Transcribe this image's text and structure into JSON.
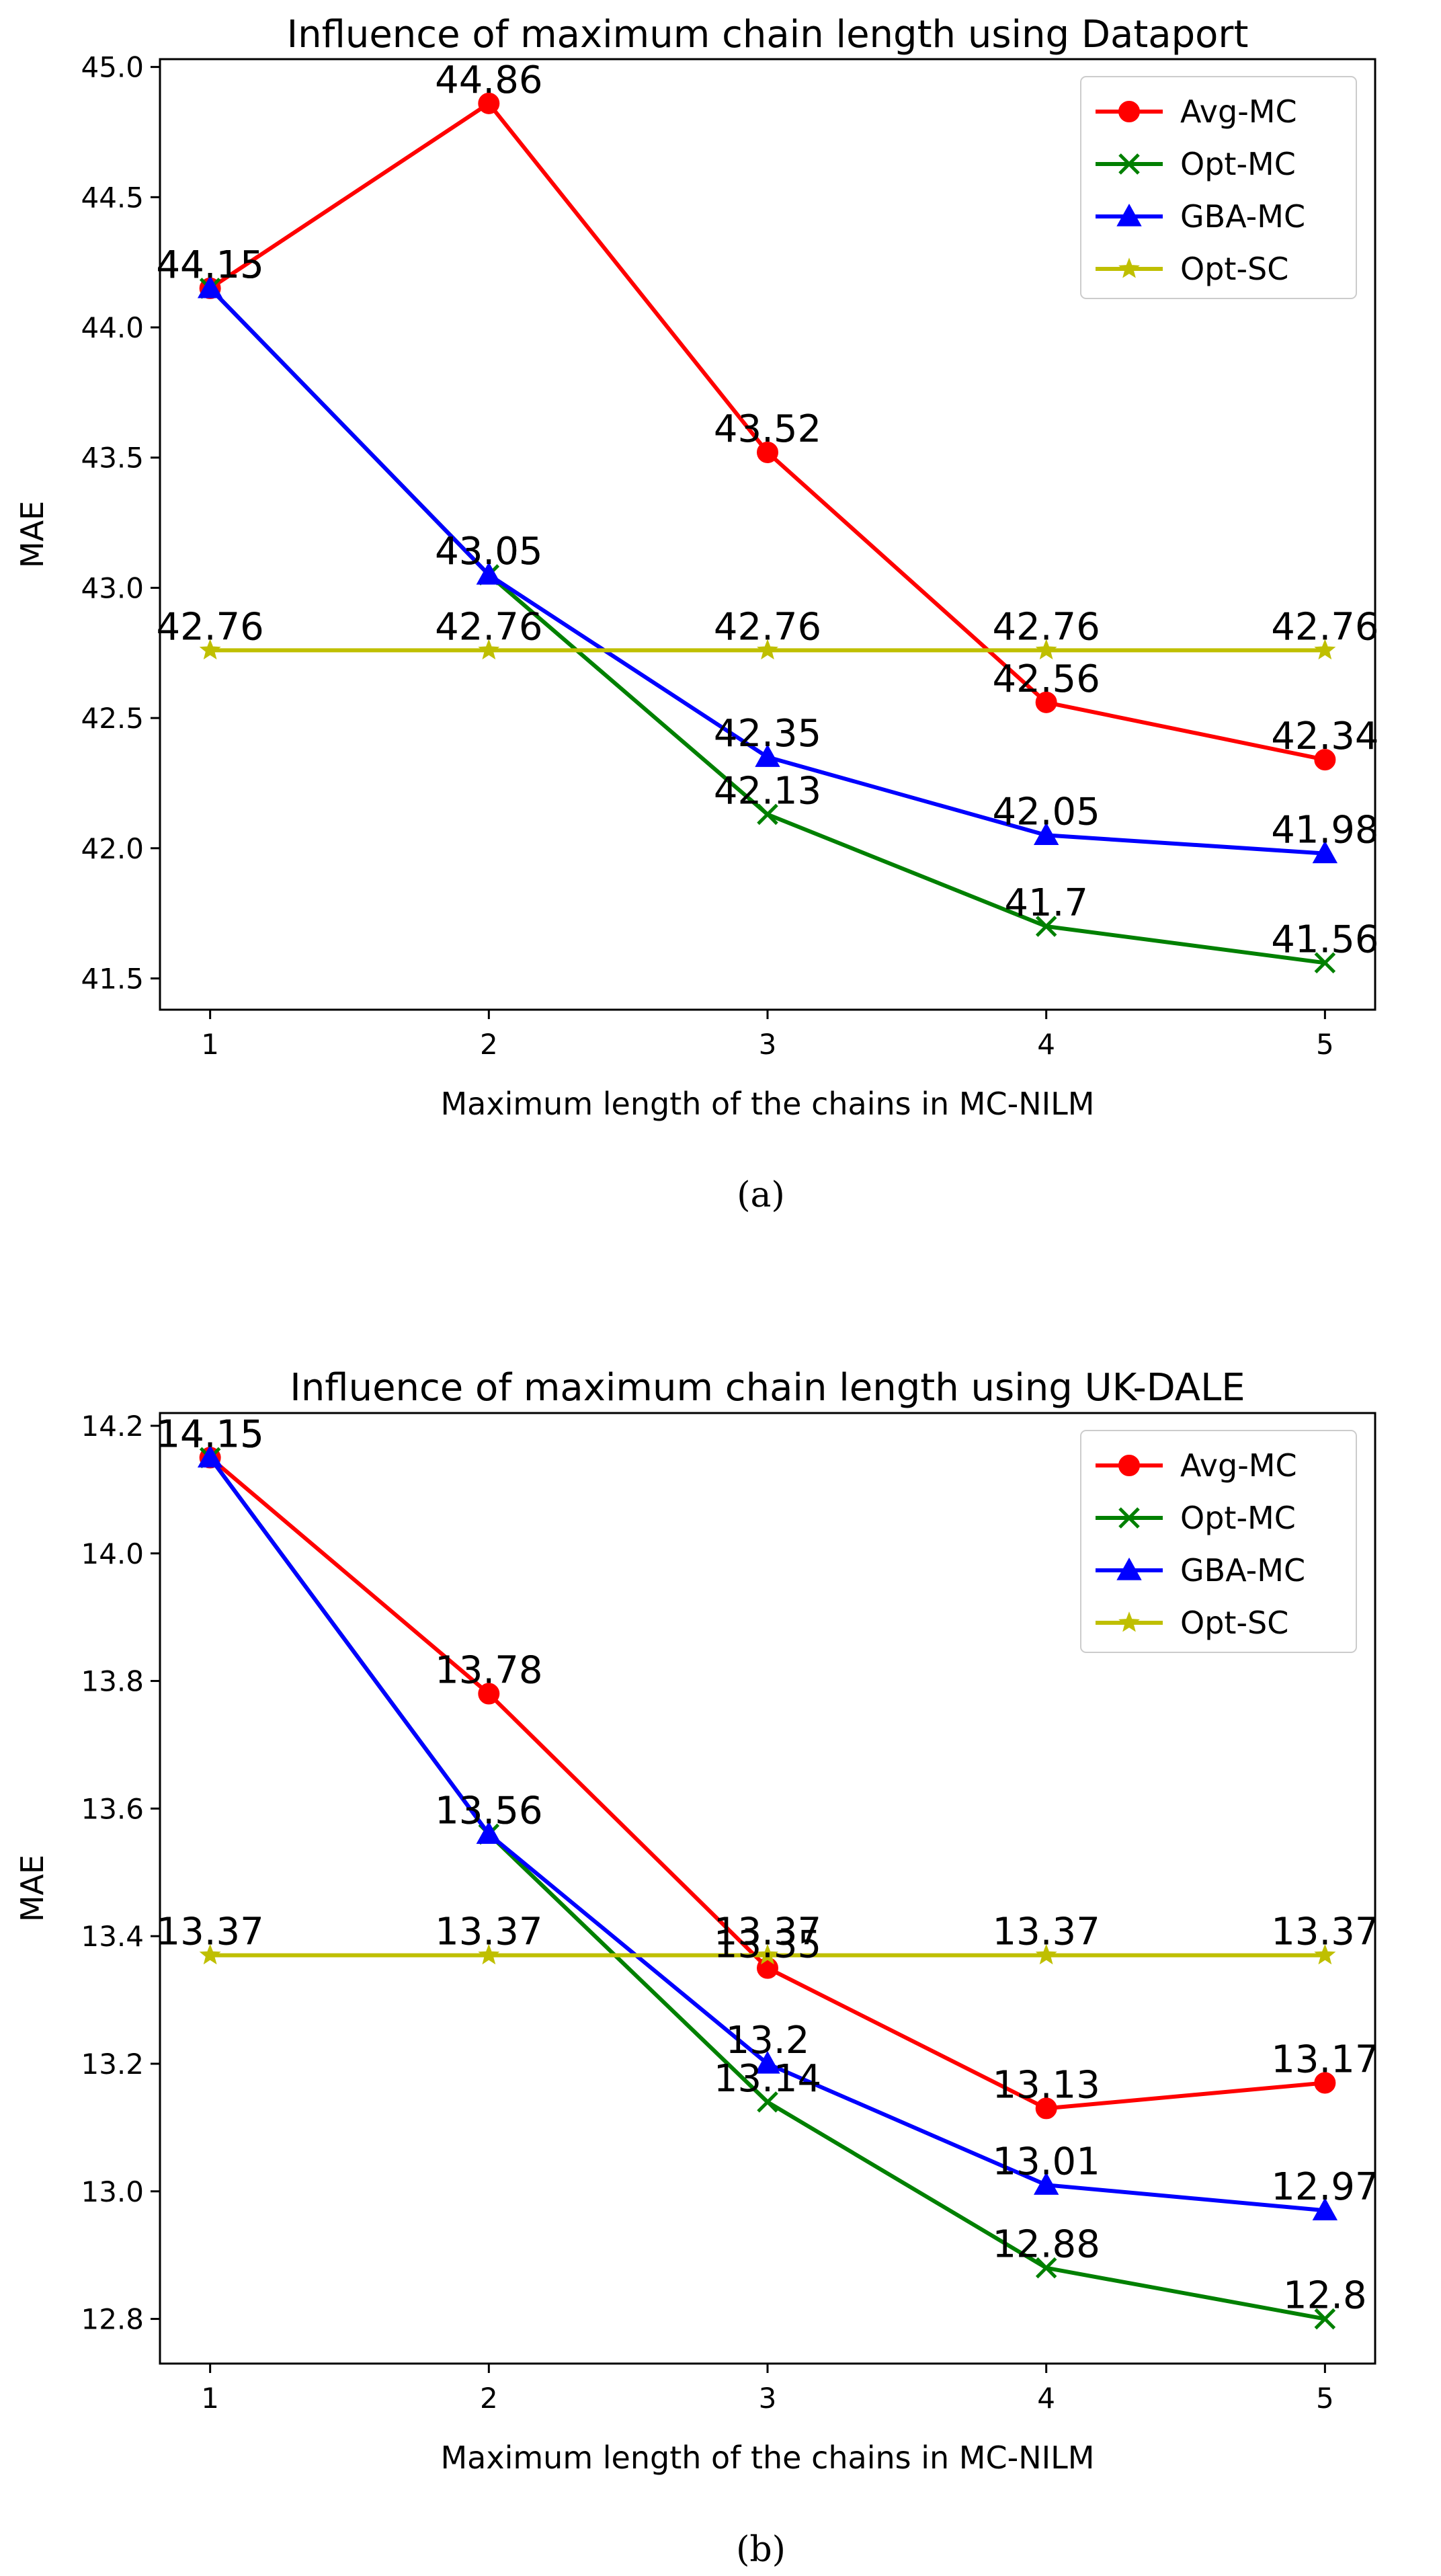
{
  "chart_data": [
    {
      "type": "line",
      "title": "Influence of maximum chain length using Dataport",
      "xlabel": "Maximum length of the chains in MC-NILM",
      "ylabel": "MAE",
      "caption": "(a)",
      "x": [
        1,
        2,
        3,
        4,
        5
      ],
      "xticks": [
        "1",
        "2",
        "3",
        "4",
        "5"
      ],
      "xlim": [
        0.82,
        5.18
      ],
      "ylim": [
        41.38,
        45.03
      ],
      "yticks": [
        "41.5",
        "42.0",
        "42.5",
        "43.0",
        "43.5",
        "44.0",
        "44.5",
        "45.0"
      ],
      "ytick_values": [
        41.5,
        42.0,
        42.5,
        43.0,
        43.5,
        44.0,
        44.5,
        45.0
      ],
      "legend_position": "top-right",
      "series": [
        {
          "name": "Avg-MC",
          "color": "#ff0000",
          "marker": "circle",
          "values": [
            44.15,
            44.86,
            43.52,
            42.56,
            42.34
          ],
          "labels": [
            "44.15",
            "44.86",
            "43.52",
            "42.56",
            "42.34"
          ]
        },
        {
          "name": "Opt-MC",
          "color": "#008000",
          "marker": "x",
          "values": [
            44.15,
            43.05,
            42.13,
            41.7,
            41.56
          ],
          "labels": [
            "44.15",
            "43.05",
            "42.13",
            "41.7",
            "41.56"
          ]
        },
        {
          "name": "GBA-MC",
          "color": "#0000ff",
          "marker": "triangle",
          "values": [
            44.15,
            43.05,
            42.35,
            42.05,
            41.98
          ],
          "labels": [
            "44.15",
            "43.05",
            "42.35",
            "42.05",
            "41.98"
          ]
        },
        {
          "name": "Opt-SC",
          "color": "#bfbf00",
          "marker": "star",
          "values": [
            42.76,
            42.76,
            42.76,
            42.76,
            42.76
          ],
          "labels": [
            "42.76",
            "42.76",
            "42.76",
            "42.76",
            "42.76"
          ]
        }
      ]
    },
    {
      "type": "line",
      "title": "Influence of maximum chain length using UK-DALE",
      "xlabel": "Maximum length of the chains in MC-NILM",
      "ylabel": "MAE",
      "caption": "(b)",
      "x": [
        1,
        2,
        3,
        4,
        5
      ],
      "xticks": [
        "1",
        "2",
        "3",
        "4",
        "5"
      ],
      "xlim": [
        0.82,
        5.18
      ],
      "ylim": [
        12.73,
        14.22
      ],
      "yticks": [
        "12.8",
        "13.0",
        "13.2",
        "13.4",
        "13.6",
        "13.8",
        "14.0",
        "14.2"
      ],
      "ytick_values": [
        12.8,
        13.0,
        13.2,
        13.4,
        13.6,
        13.8,
        14.0,
        14.2
      ],
      "legend_position": "top-right",
      "series": [
        {
          "name": "Avg-MC",
          "color": "#ff0000",
          "marker": "circle",
          "values": [
            14.15,
            13.78,
            13.35,
            13.13,
            13.17
          ],
          "labels": [
            "14.15",
            "13.78",
            "13.35",
            "13.13",
            "13.17"
          ]
        },
        {
          "name": "Opt-MC",
          "color": "#008000",
          "marker": "x",
          "values": [
            14.15,
            13.56,
            13.14,
            12.88,
            12.8
          ],
          "labels": [
            "14.15",
            "13.56",
            "13.14",
            "12.88",
            "12.8"
          ]
        },
        {
          "name": "GBA-MC",
          "color": "#0000ff",
          "marker": "triangle",
          "values": [
            14.15,
            13.56,
            13.2,
            13.01,
            12.97
          ],
          "labels": [
            "14.15",
            "13.56",
            "13.2",
            "13.01",
            "12.97"
          ]
        },
        {
          "name": "Opt-SC",
          "color": "#bfbf00",
          "marker": "star",
          "values": [
            13.37,
            13.37,
            13.37,
            13.37,
            13.37
          ],
          "labels": [
            "13.37",
            "13.37",
            "13.37",
            "13.37",
            "13.37"
          ]
        }
      ]
    }
  ]
}
